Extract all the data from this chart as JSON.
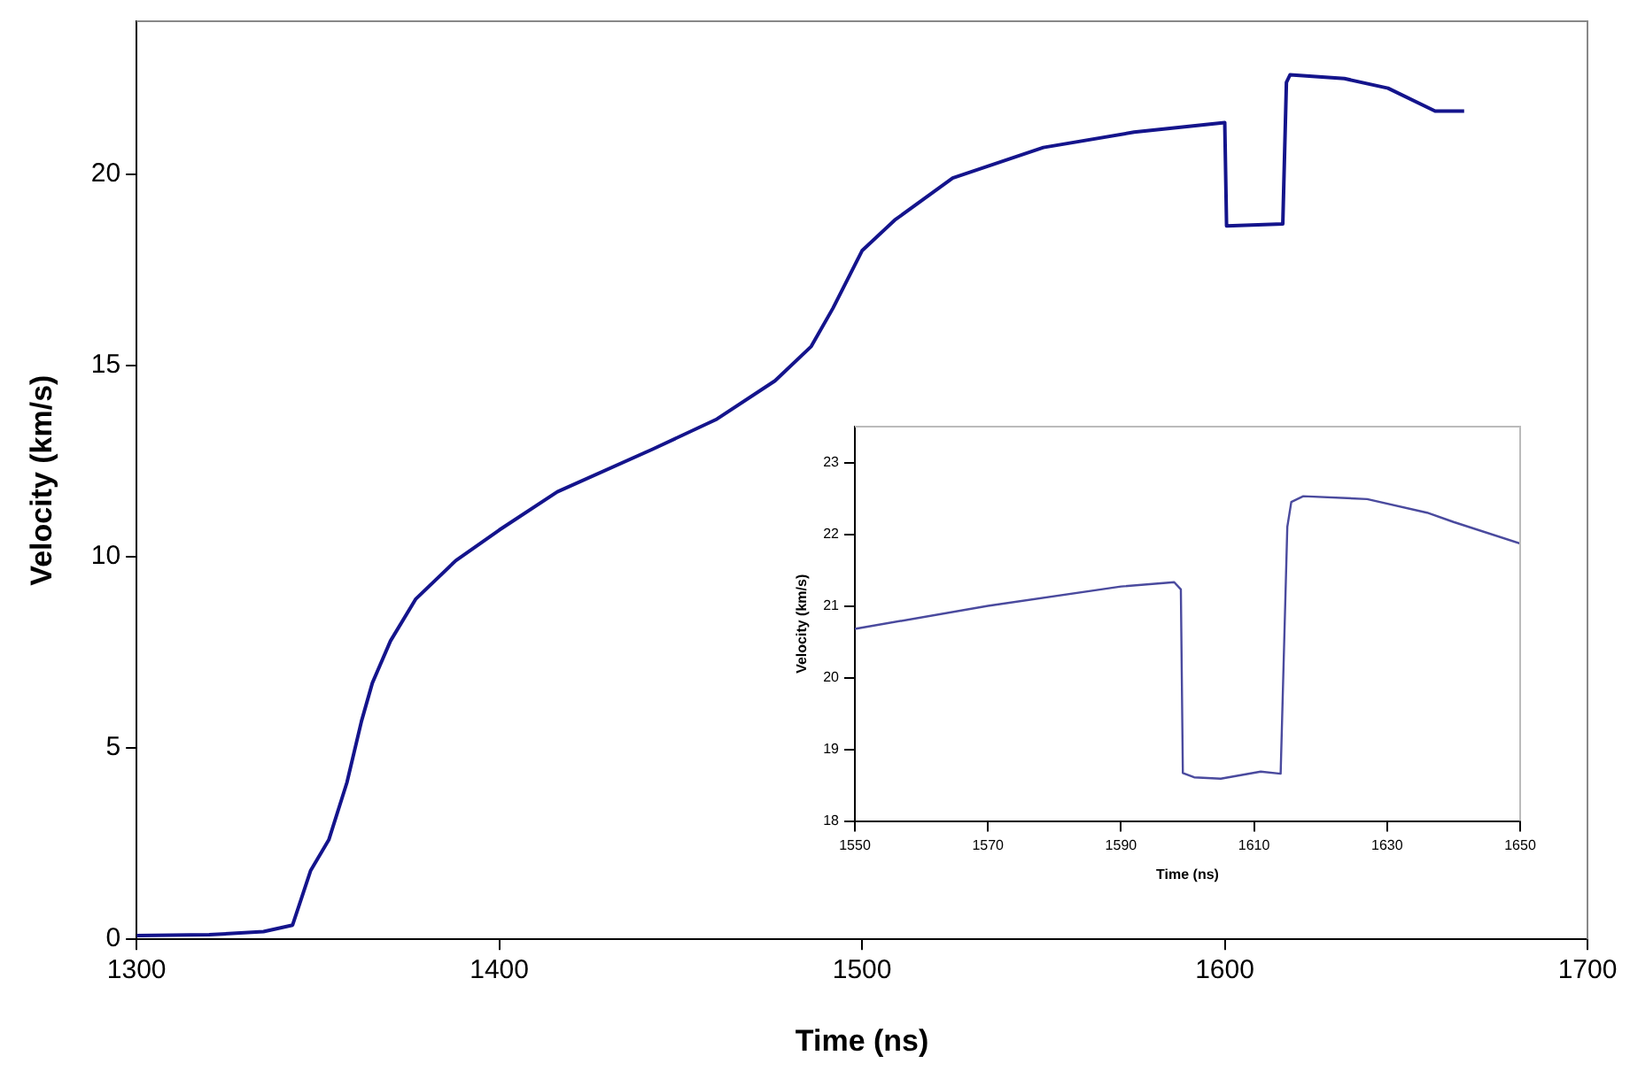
{
  "chart_data": [
    {
      "type": "line",
      "xlabel": "Time (ns)",
      "ylabel": "Velocity (km/s)",
      "xlim": [
        1300,
        1700
      ],
      "xticks": [
        1300,
        1400,
        1500,
        1600,
        1700
      ],
      "ylim": [
        0,
        24
      ],
      "yticks": [
        0,
        5,
        10,
        15,
        20
      ],
      "grid": false,
      "legend": false,
      "marker": "none",
      "line_style": "solid",
      "series": [
        {
          "color": "#14148c",
          "x": [
            1300,
            1320,
            1335,
            1343,
            1348,
            1353,
            1358,
            1362,
            1365,
            1370,
            1377,
            1388,
            1400,
            1416,
            1442,
            1460,
            1476,
            1486,
            1492,
            1500,
            1509,
            1525,
            1550,
            1575,
            1600,
            1600.5,
            1616,
            1617,
            1618,
            1633,
            1645,
            1658,
            1666
          ],
          "values": [
            0.1,
            0.12,
            0.2,
            0.37,
            1.8,
            2.6,
            4.1,
            5.7,
            6.7,
            7.8,
            8.9,
            9.9,
            10.7,
            11.7,
            12.8,
            13.6,
            14.6,
            15.5,
            16.5,
            18.0,
            18.8,
            19.9,
            20.7,
            21.1,
            21.35,
            18.65,
            18.7,
            22.4,
            22.6,
            22.5,
            22.25,
            21.65,
            21.65
          ]
        }
      ]
    },
    {
      "type": "line",
      "xlabel": "Time (ns)",
      "ylabel": "Velocity (km/s)",
      "xlim": [
        1550,
        1650
      ],
      "xticks": [
        1550,
        1570,
        1590,
        1610,
        1630,
        1650
      ],
      "ylim": [
        18,
        23.5
      ],
      "yticks": [
        18,
        19,
        20,
        21,
        22,
        23
      ],
      "grid": false,
      "legend": false,
      "marker": "none",
      "line_style": "solid",
      "series": [
        {
          "color": "#4a4a9e",
          "x": [
            1550,
            1570,
            1590,
            1598,
            1599,
            1599.3,
            1601,
            1605,
            1611,
            1614,
            1615,
            1615.6,
            1617.4,
            1627,
            1636,
            1640,
            1650
          ],
          "values": [
            20.68,
            21.0,
            21.27,
            21.33,
            21.23,
            18.67,
            18.61,
            18.59,
            18.69,
            18.66,
            22.1,
            22.45,
            22.53,
            22.49,
            22.3,
            22.17,
            21.87
          ]
        }
      ]
    }
  ]
}
